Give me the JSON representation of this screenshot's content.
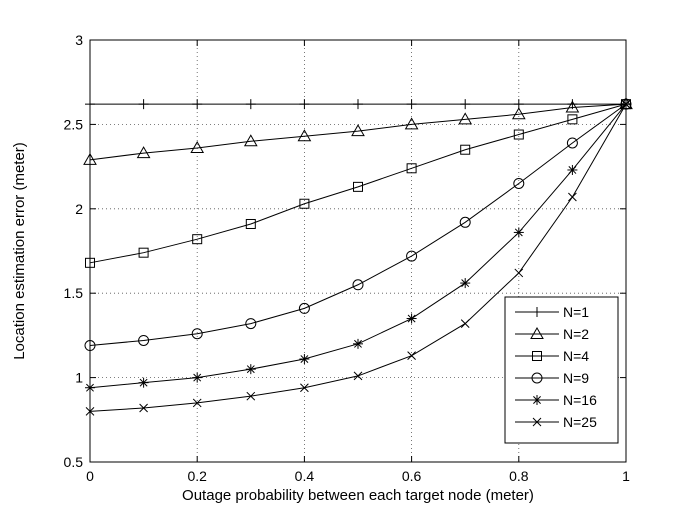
{
  "chart_data": {
    "type": "line",
    "title": "",
    "xlabel": "Outage probability between each target node (meter)",
    "ylabel": "Location estimation error (meter)",
    "xlim": [
      0,
      1
    ],
    "ylim": [
      0.5,
      3
    ],
    "xticks": [
      "0",
      "0.2",
      "0.4",
      "0.6",
      "0.8",
      "1"
    ],
    "yticks": [
      "0.5",
      "1",
      "1.5",
      "2",
      "2.5",
      "3"
    ],
    "grid": true,
    "legend_position": "bottom-right",
    "x": [
      0,
      0.1,
      0.2,
      0.3,
      0.4,
      0.5,
      0.6,
      0.7,
      0.8,
      0.9,
      1.0
    ],
    "series": [
      {
        "name": "N=1",
        "marker": "plus",
        "values": [
          2.62,
          2.62,
          2.62,
          2.62,
          2.62,
          2.62,
          2.62,
          2.62,
          2.62,
          2.62,
          2.62
        ]
      },
      {
        "name": "N=2",
        "marker": "triangle",
        "values": [
          2.29,
          2.33,
          2.36,
          2.4,
          2.43,
          2.46,
          2.5,
          2.53,
          2.56,
          2.6,
          2.62
        ]
      },
      {
        "name": "N=4",
        "marker": "square",
        "values": [
          1.68,
          1.74,
          1.82,
          1.91,
          2.03,
          2.13,
          2.24,
          2.35,
          2.44,
          2.53,
          2.62
        ]
      },
      {
        "name": "N=9",
        "marker": "circle",
        "values": [
          1.19,
          1.22,
          1.26,
          1.32,
          1.41,
          1.55,
          1.72,
          1.92,
          2.15,
          2.39,
          2.62
        ]
      },
      {
        "name": "N=16",
        "marker": "star",
        "values": [
          0.94,
          0.97,
          1.0,
          1.05,
          1.11,
          1.2,
          1.35,
          1.56,
          1.86,
          2.23,
          2.62
        ]
      },
      {
        "name": "N=25",
        "marker": "x",
        "values": [
          0.8,
          0.82,
          0.85,
          0.89,
          0.94,
          1.01,
          1.13,
          1.32,
          1.62,
          2.07,
          2.62
        ]
      }
    ]
  }
}
